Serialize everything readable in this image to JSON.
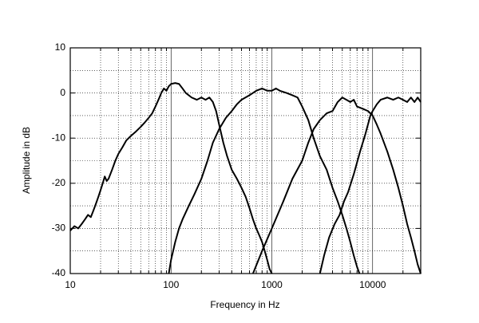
{
  "chart_data": {
    "type": "line",
    "x_label": "Frequency in Hz",
    "y_label": "Amplitude in dB",
    "log_x": true,
    "grid": true,
    "xlim": [
      10,
      30000
    ],
    "xticks": [
      10,
      100,
      1000,
      10000
    ],
    "ylim": [
      -40,
      10
    ],
    "yticks": [
      10,
      0,
      -10,
      -20,
      -30,
      -40
    ],
    "series": [
      {
        "color": "#000000",
        "x": [
          10,
          11,
          12,
          13,
          14,
          15,
          16,
          17,
          18,
          19,
          20,
          21,
          22,
          23,
          24,
          26,
          28,
          30,
          33,
          36,
          40,
          45,
          50,
          55,
          60,
          65,
          70,
          75,
          80,
          85,
          90,
          95,
          100,
          110,
          120,
          130,
          140,
          160,
          180,
          200,
          220,
          240,
          260,
          280,
          300,
          330,
          360,
          400,
          450,
          500,
          550,
          600,
          650,
          700,
          750,
          800,
          850,
          900,
          950,
          1000
        ],
        "values": [
          -30.5,
          -29.5,
          -30,
          -29,
          -28,
          -27,
          -27.5,
          -26,
          -24.5,
          -23,
          -21.5,
          -20,
          -18.5,
          -19.5,
          -19,
          -17,
          -15,
          -13.5,
          -12,
          -10.5,
          -9.5,
          -8.5,
          -7.5,
          -6.5,
          -5.5,
          -4.5,
          -3,
          -1.5,
          0,
          1,
          0.5,
          1.5,
          2,
          2.2,
          2,
          1,
          0,
          -1,
          -1.5,
          -1,
          -1.5,
          -1,
          -2,
          -4,
          -7,
          -11,
          -14,
          -17,
          -19,
          -21,
          -23,
          -25.5,
          -28,
          -30,
          -31.5,
          -33,
          -35,
          -37,
          -39,
          -40
        ]
      },
      {
        "color": "#000000",
        "x": [
          95,
          100,
          110,
          120,
          130,
          150,
          170,
          200,
          230,
          260,
          300,
          350,
          400,
          450,
          500,
          600,
          700,
          800,
          900,
          1000,
          1100,
          1200,
          1400,
          1600,
          1800,
          2000,
          2300,
          2600,
          3000,
          3500,
          4000,
          4500,
          5000,
          5500,
          6000,
          6500,
          7000,
          7400
        ],
        "values": [
          -40,
          -37,
          -33,
          -30,
          -28,
          -25,
          -22.5,
          -19,
          -15,
          -11,
          -8,
          -5.5,
          -4,
          -2.5,
          -1.5,
          -0.5,
          0.5,
          1,
          0.5,
          0.5,
          1,
          0.5,
          0,
          -0.5,
          -1,
          -3,
          -6,
          -10,
          -14,
          -17,
          -21,
          -24,
          -27,
          -30,
          -33,
          -36,
          -38.5,
          -40
        ]
      },
      {
        "color": "#000000",
        "x": [
          650,
          800,
          1000,
          1300,
          1600,
          2000,
          2300,
          2600,
          3000,
          3500,
          4000,
          4500,
          5000,
          5500,
          6000,
          6500,
          7000,
          8000,
          9000,
          10000,
          11000,
          12000,
          14000,
          16000,
          18000,
          20000,
          22000,
          24000,
          26000,
          28000,
          30000
        ],
        "values": [
          -40,
          -35,
          -30,
          -24,
          -19,
          -15,
          -11,
          -8,
          -6,
          -4.5,
          -4,
          -2,
          -1,
          -1.5,
          -2,
          -1.5,
          -3,
          -3.5,
          -4,
          -5,
          -7,
          -9,
          -13,
          -17,
          -21,
          -25,
          -29,
          -32,
          -35,
          -38,
          -40
        ]
      },
      {
        "color": "#000000",
        "x": [
          3000,
          3300,
          3700,
          4200,
          4700,
          5200,
          5700,
          6500,
          7500,
          8500,
          9500,
          10000,
          11000,
          12000,
          14000,
          16000,
          18000,
          20000,
          22000,
          24000,
          26000,
          28000,
          30000
        ],
        "values": [
          -40,
          -36,
          -32,
          -29,
          -27,
          -24,
          -22,
          -18,
          -13,
          -9,
          -5,
          -4,
          -2.5,
          -1.5,
          -1,
          -1.5,
          -1,
          -1.5,
          -2,
          -1,
          -2,
          -1,
          -2
        ]
      }
    ]
  }
}
